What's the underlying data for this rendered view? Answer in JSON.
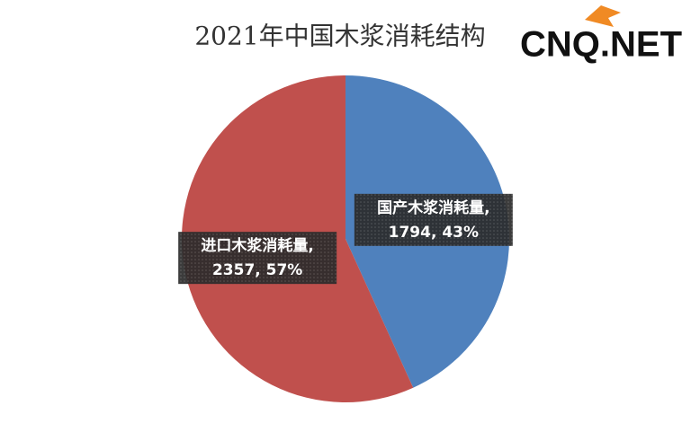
{
  "chart_data": {
    "type": "pie",
    "title": "2021年中国木浆消耗结构",
    "categories": [
      "国产木浆消耗量,",
      "进口木浆消耗量,"
    ],
    "values": [
      1794,
      2357
    ],
    "value_labels": [
      "1794, 43%",
      "2357, 57%"
    ],
    "colors": [
      "#4f81bd",
      "#c0504d"
    ]
  },
  "logo": "CNQ.NET"
}
